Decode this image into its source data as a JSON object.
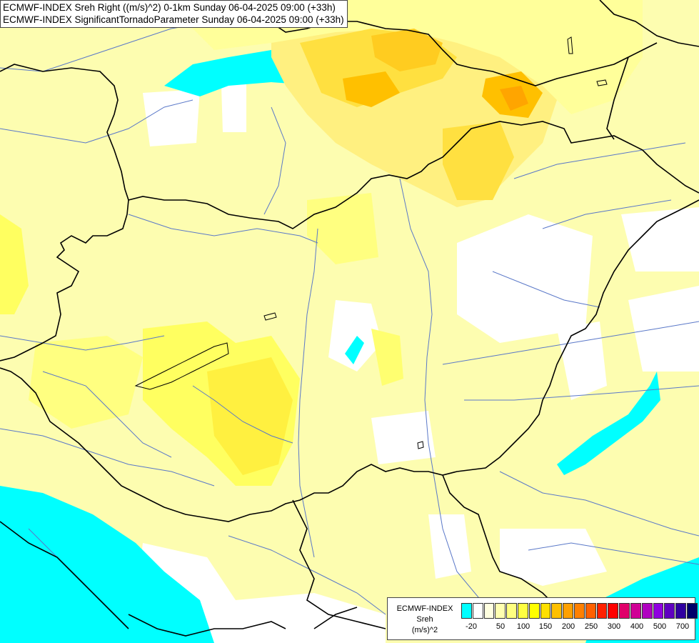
{
  "title": {
    "line1": "ECMWF-INDEX Sreh Right ((m/s)^2) 0-1km Sunday 06-04-2025 09:00 (+33h)",
    "line2": "ECMWF-INDEX SignificantTornadoParameter Sunday 06-04-2025 09:00 (+33h)"
  },
  "legend": {
    "source": "ECMWF-INDEX",
    "parameter": "Sreh",
    "unit": "(m/s)^2",
    "colors": [
      "#00ffff",
      "#ffffff",
      "#ffffe0",
      "#ffffb0",
      "#ffff80",
      "#ffff40",
      "#ffff00",
      "#ffe000",
      "#ffc000",
      "#ffa000",
      "#ff8000",
      "#ff6000",
      "#ff2000",
      "#ff0000",
      "#e0006a",
      "#d00096",
      "#b000c0",
      "#9000e0",
      "#6000c0",
      "#3000a0",
      "#00006a"
    ],
    "ticks": [
      "-20",
      "50",
      "100",
      "150",
      "200",
      "250",
      "300",
      "400",
      "500",
      "700"
    ]
  }
}
